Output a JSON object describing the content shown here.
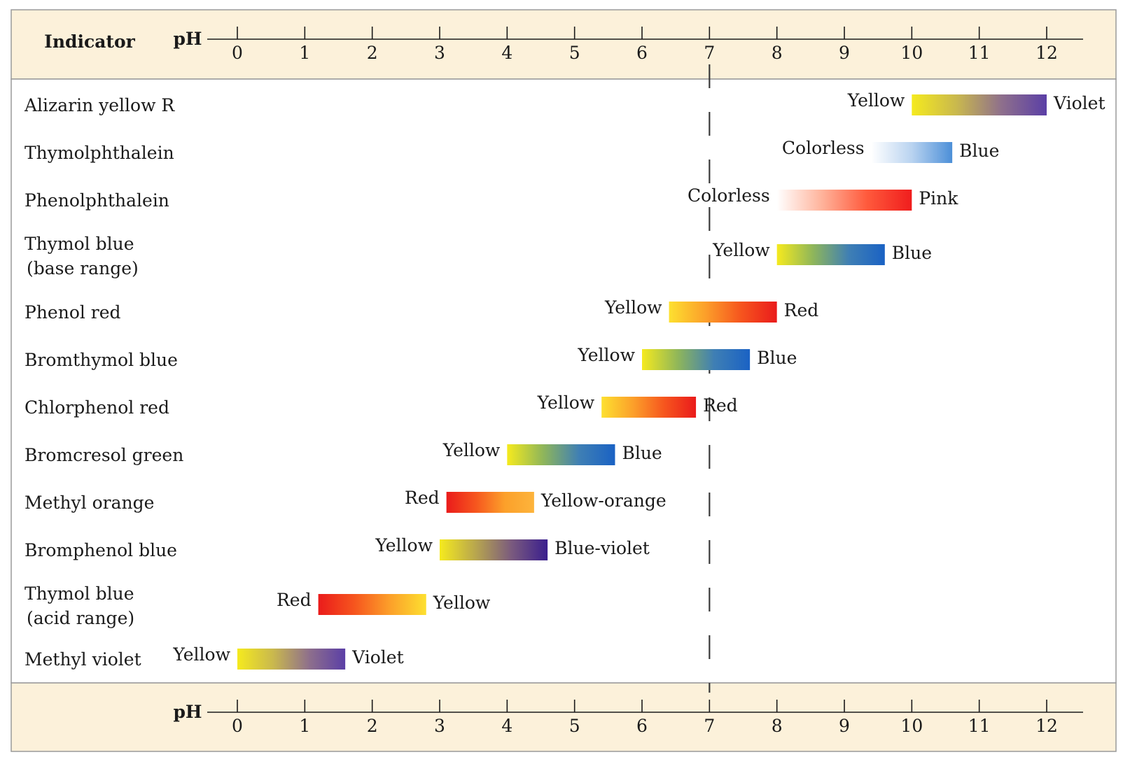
{
  "chart_data": {
    "type": "range-bar",
    "header_label": "Indicator",
    "axis_label": "pH",
    "ticks": [
      0,
      1,
      2,
      3,
      4,
      5,
      6,
      7,
      8,
      9,
      10,
      11,
      12
    ],
    "xlim": [
      0,
      12
    ],
    "neutral_line": 7,
    "indicators": [
      {
        "name": [
          "Alizarin yellow R"
        ],
        "start": 10.0,
        "end": 12.0,
        "low_label": "Yellow",
        "high_label": "Violet",
        "colors": [
          "#f5ea1e",
          "#c9b84e",
          "#8e6f8c",
          "#5b3fa6"
        ]
      },
      {
        "name": [
          "Thymolphthalein"
        ],
        "start": 9.4,
        "end": 10.6,
        "low_label": "Colorless",
        "high_label": "Blue",
        "colors": [
          "#ffffff",
          "#b9d3f0",
          "#4c8fd8"
        ]
      },
      {
        "name": [
          "Phenolphthalein"
        ],
        "start": 8.0,
        "end": 10.0,
        "low_label": "Colorless",
        "high_label": "Pink",
        "colors": [
          "#ffffff",
          "#ffb39b",
          "#ff5a3c",
          "#f01d1d"
        ]
      },
      {
        "name": [
          "Thymol blue",
          "(base range)"
        ],
        "start": 8.0,
        "end": 9.6,
        "low_label": "Yellow",
        "high_label": "Blue",
        "colors": [
          "#f5ea1e",
          "#8fb65a",
          "#3f7fb4",
          "#1a62c4"
        ]
      },
      {
        "name": [
          "Phenol red"
        ],
        "start": 6.4,
        "end": 8.0,
        "low_label": "Yellow",
        "high_label": "Red",
        "colors": [
          "#fde030",
          "#fca02a",
          "#f6551e",
          "#ea1b1b"
        ]
      },
      {
        "name": [
          "Bromthymol blue"
        ],
        "start": 6.0,
        "end": 7.6,
        "low_label": "Yellow",
        "high_label": "Blue",
        "colors": [
          "#f5ea1e",
          "#8fb65a",
          "#3f7fb4",
          "#1a62c4"
        ]
      },
      {
        "name": [
          "Chlorphenol red"
        ],
        "start": 5.4,
        "end": 6.8,
        "low_label": "Yellow",
        "high_label": "Red",
        "colors": [
          "#fde030",
          "#fca02a",
          "#f6551e",
          "#ea1b1b"
        ]
      },
      {
        "name": [
          "Bromcresol green"
        ],
        "start": 4.0,
        "end": 5.6,
        "low_label": "Yellow",
        "high_label": "Blue",
        "colors": [
          "#f5ea1e",
          "#8fb65a",
          "#3f7fb4",
          "#1a62c4"
        ]
      },
      {
        "name": [
          "Methyl orange"
        ],
        "start": 3.1,
        "end": 4.4,
        "low_label": "Red",
        "high_label": "Yellow-orange",
        "colors": [
          "#ea1b1b",
          "#f6551e",
          "#fca02a",
          "#fdb43c"
        ]
      },
      {
        "name": [
          "Bromphenol blue"
        ],
        "start": 3.0,
        "end": 4.6,
        "low_label": "Yellow",
        "high_label": "Blue-violet",
        "colors": [
          "#f5ea1e",
          "#b8a64e",
          "#7a5a7e",
          "#3a1e8e"
        ]
      },
      {
        "name": [
          "Thymol blue",
          "(acid range)"
        ],
        "start": 1.2,
        "end": 2.8,
        "low_label": "Red",
        "high_label": "Yellow",
        "colors": [
          "#ea1b1b",
          "#f6551e",
          "#fca02a",
          "#fde030"
        ]
      },
      {
        "name": [
          "Methyl violet"
        ],
        "start": 0.0,
        "end": 1.6,
        "low_label": "Yellow",
        "high_label": "Violet",
        "colors": [
          "#f5ea1e",
          "#c9b84e",
          "#8e6f8c",
          "#5b3fa6"
        ]
      }
    ]
  },
  "colors": {
    "band_fill": "#fcf1da",
    "border": "#9a9a9a",
    "text": "#1a1a1a"
  }
}
